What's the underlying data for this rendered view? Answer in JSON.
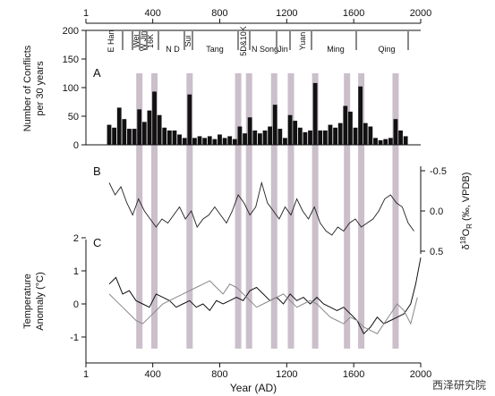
{
  "chart_data": [
    {
      "panel": "A",
      "type": "bar",
      "ylabel": "Number of Conflicts per 30 years",
      "xlim": [
        1,
        2000
      ],
      "ylim": [
        0,
        200
      ],
      "x_ticks": [
        1,
        400,
        800,
        1200,
        1600,
        2000
      ],
      "y_ticks": [
        0,
        50,
        100,
        150,
        200
      ],
      "dynasties": [
        "E Han",
        "Wei",
        "W Jin",
        "16K",
        "N D",
        "Sui",
        "Tang",
        "5D&10K",
        "N Song",
        "Jin",
        "Yuan",
        "Ming",
        "Qing"
      ],
      "bin_centers": [
        140,
        170,
        200,
        230,
        260,
        290,
        320,
        350,
        380,
        410,
        440,
        470,
        500,
        530,
        560,
        590,
        620,
        650,
        680,
        710,
        740,
        770,
        800,
        830,
        860,
        890,
        920,
        950,
        980,
        1010,
        1040,
        1070,
        1100,
        1130,
        1160,
        1190,
        1220,
        1250,
        1280,
        1310,
        1340,
        1370,
        1400,
        1430,
        1460,
        1490,
        1520,
        1550,
        1580,
        1610,
        1640,
        1670,
        1700,
        1730,
        1760,
        1790,
        1820,
        1850,
        1880,
        1910
      ],
      "values": [
        35,
        30,
        65,
        45,
        28,
        28,
        62,
        40,
        60,
        93,
        52,
        30,
        25,
        25,
        18,
        12,
        88,
        12,
        15,
        12,
        15,
        10,
        18,
        12,
        15,
        10,
        32,
        20,
        48,
        25,
        20,
        25,
        32,
        70,
        28,
        12,
        52,
        42,
        30,
        22,
        25,
        108,
        25,
        25,
        35,
        30,
        38,
        68,
        58,
        30,
        102,
        38,
        32,
        12,
        8,
        10,
        12,
        45,
        25,
        15
      ]
    },
    {
      "panel": "B",
      "type": "line",
      "ylabel": "δ18O_R (‰, VPDB)",
      "ylim": [
        0.7,
        -0.7
      ],
      "y_ticks": [
        -0.5,
        0,
        0.5
      ],
      "y_ticklabels": [
        "-0.5",
        "0.0",
        "0.5"
      ],
      "x": [
        140,
        175,
        210,
        245,
        280,
        315,
        350,
        385,
        420,
        455,
        490,
        525,
        560,
        595,
        630,
        665,
        700,
        735,
        770,
        805,
        840,
        875,
        910,
        945,
        980,
        1015,
        1050,
        1085,
        1120,
        1155,
        1190,
        1225,
        1260,
        1295,
        1330,
        1365,
        1400,
        1435,
        1470,
        1505,
        1540,
        1575,
        1610,
        1645,
        1680,
        1715,
        1750,
        1785,
        1820,
        1855,
        1890,
        1925,
        1960
      ],
      "values": [
        -0.35,
        -0.2,
        -0.3,
        -0.1,
        0.05,
        -0.15,
        0.0,
        0.1,
        0.2,
        0.1,
        0.15,
        0.05,
        -0.05,
        0.1,
        0.0,
        0.2,
        0.1,
        0.05,
        -0.05,
        0.05,
        0.15,
        0.0,
        -0.2,
        -0.1,
        0.05,
        -0.05,
        -0.35,
        -0.1,
        0.0,
        0.1,
        -0.05,
        0.05,
        -0.15,
        0.0,
        0.1,
        -0.05,
        0.15,
        0.25,
        0.3,
        0.2,
        0.25,
        0.15,
        0.1,
        0.2,
        0.15,
        0.1,
        0.0,
        -0.15,
        -0.2,
        -0.1,
        -0.05,
        0.15,
        0.25
      ]
    },
    {
      "panel": "C",
      "type": "line",
      "ylabel": "Temperature Anomaly (°C)",
      "xlabel": "Year (AD)",
      "ylim": [
        -1.3,
        2
      ],
      "y_ticks": [
        -1,
        0,
        1,
        2
      ],
      "x_ticks": [
        1,
        400,
        800,
        1200,
        1600,
        2000
      ],
      "series": [
        {
          "x": [
            140,
            180,
            220,
            260,
            300,
            340,
            380,
            420,
            460,
            500,
            540,
            580,
            620,
            660,
            700,
            740,
            780,
            820,
            860,
            900,
            940,
            980,
            1020,
            1060,
            1100,
            1140,
            1180,
            1220,
            1260,
            1300,
            1340,
            1380,
            1420,
            1460,
            1500,
            1540,
            1580,
            1620,
            1660,
            1700,
            1740,
            1780,
            1820,
            1860,
            1900,
            1940,
            1970,
            2000
          ],
          "values": [
            0.6,
            0.8,
            0.3,
            0.4,
            0.1,
            0.0,
            -0.1,
            0.3,
            0.2,
            0.1,
            -0.1,
            0.0,
            0.1,
            -0.1,
            0.0,
            -0.2,
            0.1,
            0.0,
            0.1,
            0.2,
            0.1,
            0.4,
            0.5,
            0.3,
            0.1,
            0.2,
            0.0,
            0.3,
            0.1,
            0.2,
            0.0,
            0.2,
            0.0,
            -0.1,
            -0.2,
            -0.1,
            -0.3,
            -0.5,
            -0.9,
            -0.7,
            -0.4,
            -0.6,
            -0.5,
            -0.4,
            -0.3,
            0.0,
            0.6,
            1.4
          ]
        },
        {
          "x": [
            140,
            180,
            220,
            260,
            300,
            340,
            380,
            420,
            460,
            500,
            540,
            580,
            620,
            660,
            700,
            740,
            780,
            820,
            860,
            900,
            940,
            980,
            1020,
            1060,
            1100,
            1140,
            1180,
            1220,
            1260,
            1300,
            1340,
            1380,
            1420,
            1460,
            1500,
            1540,
            1580,
            1620,
            1660,
            1700,
            1740,
            1780,
            1820,
            1860,
            1900,
            1940,
            1980
          ],
          "values": [
            0.3,
            0.1,
            -0.1,
            -0.3,
            -0.5,
            -0.6,
            -0.4,
            -0.2,
            0.0,
            0.1,
            0.2,
            0.3,
            0.4,
            0.5,
            0.6,
            0.7,
            0.5,
            0.3,
            0.6,
            0.5,
            0.3,
            0.1,
            -0.1,
            0.0,
            0.1,
            0.2,
            0.3,
            0.1,
            -0.1,
            0.0,
            0.1,
            0.0,
            -0.2,
            -0.4,
            -0.5,
            -0.6,
            -0.4,
            -0.5,
            -0.7,
            -0.8,
            -0.9,
            -0.6,
            -0.3,
            0.0,
            -0.2,
            -0.6,
            0.2
          ]
        }
      ]
    }
  ],
  "war_periods": [
    320,
    410,
    620,
    910,
    975,
    1125,
    1225,
    1370,
    1560,
    1645,
    1850
  ],
  "watermark": "西泽研究院"
}
